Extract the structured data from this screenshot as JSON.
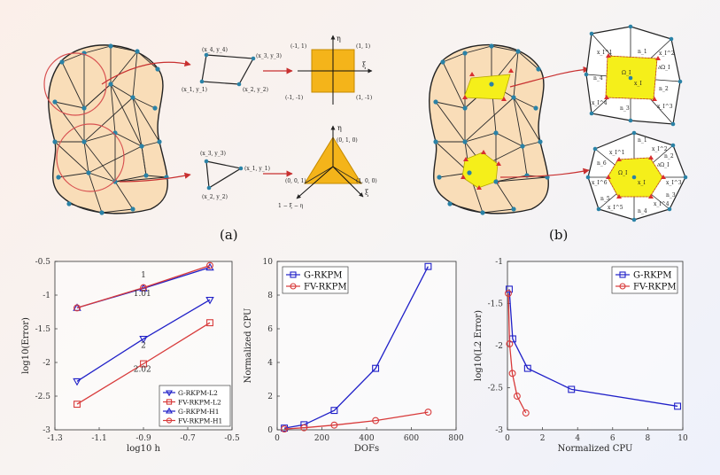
{
  "diagrams": {
    "a": {
      "caption": "(a)",
      "quad_physical": [
        "(x_1, y_1)",
        "(x_2, y_2)",
        "(x_3, y_3)",
        "(x_4, y_4)"
      ],
      "quad_reference": [
        "(-1, 1)",
        "(1, 1)",
        "(-1, -1)",
        "(1, -1)"
      ],
      "tri_physical": [
        "(x_1, y_1)",
        "(x_2, y_2)",
        "(x_3, y_3)"
      ],
      "tri_reference": [
        "(0, 1, 0)",
        "(0, 0, 1)",
        "(1, 0, 0)"
      ],
      "tri_formula": "1 − ξ − η",
      "xi": "ξ",
      "eta": "η"
    },
    "b": {
      "caption": "(b)",
      "quad_labels": [
        "x_I",
        "Ω_I",
        "∂Ω_I",
        "n_1",
        "n_2",
        "n_3",
        "n_4",
        "x_I^1",
        "x_I^2",
        "x_I^3",
        "x_I^4"
      ],
      "hex_labels": [
        "x_I",
        "Ω_I",
        "∂Ω_I",
        "n_1",
        "n_2",
        "n_3",
        "n_4",
        "n_5",
        "n_6",
        "x_I^1",
        "x_I^2",
        "x_I^3",
        "x_I^4",
        "x_I^5",
        "x_I^6"
      ]
    }
  },
  "chart_data": [
    {
      "type": "line",
      "title": "",
      "xlabel": "log10 h",
      "ylabel": "log10(Error)",
      "xlim": [
        -1.3,
        -0.5
      ],
      "ylim": [
        -3,
        -0.5
      ],
      "xticks": [
        "-1.3",
        "-1.1",
        "-0.9",
        "-0.7",
        "-0.5"
      ],
      "yticks": [
        "-0.5",
        "-1",
        "-1.5",
        "-2",
        "-2.5",
        "-3"
      ],
      "series": [
        {
          "name": "G-RKPM-L2",
          "color": "#2020c8",
          "marker": "triangle-down",
          "x": [
            -1.2,
            -0.9,
            -0.6
          ],
          "y": [
            -2.28,
            -1.65,
            -1.07
          ]
        },
        {
          "name": "FV-RKPM-L2",
          "color": "#d83a3a",
          "marker": "square",
          "x": [
            -1.2,
            -0.9,
            -0.6
          ],
          "y": [
            -2.62,
            -2.02,
            -1.41
          ]
        },
        {
          "name": "G-RKPM-H1",
          "color": "#2020c8",
          "marker": "triangle-up",
          "x": [
            -1.2,
            -0.9,
            -0.6
          ],
          "y": [
            -1.19,
            -0.9,
            -0.59
          ]
        },
        {
          "name": "FV-RKPM-H1",
          "color": "#d83a3a",
          "marker": "circle",
          "x": [
            -1.2,
            -0.9,
            -0.6
          ],
          "y": [
            -1.19,
            -0.89,
            -0.56
          ]
        }
      ],
      "annotations": [
        "1",
        "1.01",
        "2",
        "2.02"
      ],
      "legend_position": "bottom-right"
    },
    {
      "type": "line",
      "xlabel": "DOFs",
      "ylabel": "Normalized CPU",
      "xlim": [
        0,
        800
      ],
      "ylim": [
        0,
        10
      ],
      "xticks": [
        "0",
        "200",
        "400",
        "600",
        "800"
      ],
      "yticks": [
        "0",
        "2",
        "4",
        "6",
        "8",
        "10"
      ],
      "series": [
        {
          "name": "G-RKPM",
          "color": "#2020c8",
          "marker": "square",
          "x": [
            32,
            120,
            255,
            440,
            675
          ],
          "y": [
            0.1,
            0.3,
            1.15,
            3.65,
            9.7
          ]
        },
        {
          "name": "FV-RKPM",
          "color": "#d83a3a",
          "marker": "circle",
          "x": [
            32,
            120,
            255,
            440,
            675
          ],
          "y": [
            0.05,
            0.12,
            0.28,
            0.55,
            1.05
          ]
        }
      ],
      "legend_position": "top-left"
    },
    {
      "type": "line",
      "xlabel": "Normalized CPU",
      "ylabel": "log10(L2 Error)",
      "xlim": [
        0,
        10
      ],
      "ylim": [
        -3,
        -1
      ],
      "xticks": [
        "0",
        "2",
        "4",
        "6",
        "8",
        "10"
      ],
      "yticks": [
        "-1",
        "-1.5",
        "-2",
        "-2.5",
        "-3"
      ],
      "series": [
        {
          "name": "G-RKPM",
          "color": "#2020c8",
          "marker": "square",
          "x": [
            0.1,
            0.3,
            1.15,
            3.65,
            9.7
          ],
          "y": [
            -1.33,
            -1.92,
            -2.27,
            -2.52,
            -2.72
          ]
        },
        {
          "name": "FV-RKPM",
          "color": "#d83a3a",
          "marker": "circle",
          "x": [
            0.05,
            0.12,
            0.28,
            0.55,
            1.05
          ],
          "y": [
            -1.38,
            -1.98,
            -2.33,
            -2.6,
            -2.8
          ]
        }
      ],
      "legend_position": "top-right"
    }
  ]
}
